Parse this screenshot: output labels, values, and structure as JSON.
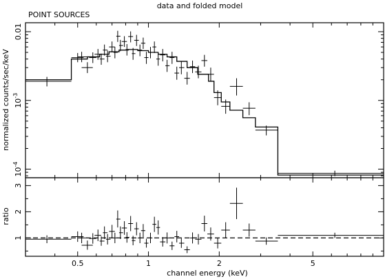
{
  "chart_data": [
    {
      "type": "line",
      "title": "data and folded model",
      "subtitle": "POINT SOURCES",
      "xlabel": "",
      "ylabel": "normalized counts/sec/keV",
      "xscale": "log",
      "yscale": "log",
      "xlim": [
        0.3,
        10
      ],
      "ylim": [
        7.5e-05,
        0.0135
      ],
      "y_tick_labels": [
        {
          "value": 0.01,
          "label": "0.01"
        },
        {
          "value": 0.001,
          "label": "10",
          "exp": "-3"
        },
        {
          "value": 0.0001,
          "label": "10",
          "exp": "-4"
        }
      ],
      "series": [
        {
          "kind": "data",
          "points": [
            {
              "x": 0.37,
              "xlo": 0.3,
              "xhi": 0.47,
              "y": 0.0019,
              "ylo": 0.0016,
              "yhi": 0.0022
            },
            {
              "x": 0.5,
              "xlo": 0.47,
              "xhi": 0.53,
              "y": 0.0042,
              "ylo": 0.0036,
              "yhi": 0.0049
            },
            {
              "x": 0.52,
              "xlo": 0.5,
              "xhi": 0.55,
              "y": 0.0043,
              "ylo": 0.0036,
              "yhi": 0.0051
            },
            {
              "x": 0.55,
              "xlo": 0.52,
              "xhi": 0.58,
              "y": 0.003,
              "ylo": 0.0025,
              "yhi": 0.0036
            },
            {
              "x": 0.58,
              "xlo": 0.56,
              "xhi": 0.6,
              "y": 0.0042,
              "ylo": 0.0035,
              "yhi": 0.005
            },
            {
              "x": 0.61,
              "xlo": 0.59,
              "xhi": 0.63,
              "y": 0.0047,
              "ylo": 0.0039,
              "yhi": 0.0056
            },
            {
              "x": 0.63,
              "xlo": 0.62,
              "xhi": 0.65,
              "y": 0.004,
              "ylo": 0.0033,
              "yhi": 0.0048
            },
            {
              "x": 0.65,
              "xlo": 0.64,
              "xhi": 0.67,
              "y": 0.0054,
              "ylo": 0.0045,
              "yhi": 0.0065
            },
            {
              "x": 0.67,
              "xlo": 0.66,
              "xhi": 0.69,
              "y": 0.0044,
              "ylo": 0.0036,
              "yhi": 0.0053
            },
            {
              "x": 0.7,
              "xlo": 0.68,
              "xhi": 0.72,
              "y": 0.006,
              "ylo": 0.005,
              "yhi": 0.0072
            },
            {
              "x": 0.72,
              "xlo": 0.71,
              "xhi": 0.74,
              "y": 0.005,
              "ylo": 0.0041,
              "yhi": 0.006
            },
            {
              "x": 0.74,
              "xlo": 0.73,
              "xhi": 0.76,
              "y": 0.0086,
              "ylo": 0.0071,
              "yhi": 0.0103
            },
            {
              "x": 0.76,
              "xlo": 0.75,
              "xhi": 0.78,
              "y": 0.0063,
              "ylo": 0.0052,
              "yhi": 0.0076
            },
            {
              "x": 0.79,
              "xlo": 0.77,
              "xhi": 0.81,
              "y": 0.0072,
              "ylo": 0.006,
              "yhi": 0.0086
            },
            {
              "x": 0.81,
              "xlo": 0.8,
              "xhi": 0.83,
              "y": 0.0055,
              "ylo": 0.0045,
              "yhi": 0.0066
            },
            {
              "x": 0.84,
              "xlo": 0.82,
              "xhi": 0.86,
              "y": 0.0085,
              "ylo": 0.007,
              "yhi": 0.0101
            },
            {
              "x": 0.86,
              "xlo": 0.85,
              "xhi": 0.88,
              "y": 0.0048,
              "ylo": 0.0039,
              "yhi": 0.0058
            },
            {
              "x": 0.89,
              "xlo": 0.87,
              "xhi": 0.91,
              "y": 0.0075,
              "ylo": 0.0062,
              "yhi": 0.009
            },
            {
              "x": 0.92,
              "xlo": 0.9,
              "xhi": 0.94,
              "y": 0.0054,
              "ylo": 0.0044,
              "yhi": 0.0065
            },
            {
              "x": 0.95,
              "xlo": 0.93,
              "xhi": 0.97,
              "y": 0.0068,
              "ylo": 0.0056,
              "yhi": 0.0082
            },
            {
              "x": 0.98,
              "xlo": 0.96,
              "xhi": 1.0,
              "y": 0.0042,
              "ylo": 0.0034,
              "yhi": 0.0051
            },
            {
              "x": 1.02,
              "xlo": 1.0,
              "xhi": 1.04,
              "y": 0.005,
              "ylo": 0.0041,
              "yhi": 0.006
            },
            {
              "x": 1.06,
              "xlo": 1.04,
              "xhi": 1.08,
              "y": 0.006,
              "ylo": 0.0049,
              "yhi": 0.0072
            },
            {
              "x": 1.1,
              "xlo": 1.08,
              "xhi": 1.12,
              "y": 0.004,
              "ylo": 0.0032,
              "yhi": 0.0049
            },
            {
              "x": 1.15,
              "xlo": 1.12,
              "xhi": 1.18,
              "y": 0.0046,
              "ylo": 0.0037,
              "yhi": 0.0056
            },
            {
              "x": 1.2,
              "xlo": 1.18,
              "xhi": 1.23,
              "y": 0.0032,
              "ylo": 0.0026,
              "yhi": 0.0039
            },
            {
              "x": 1.26,
              "xlo": 1.23,
              "xhi": 1.29,
              "y": 0.0042,
              "ylo": 0.0034,
              "yhi": 0.0051
            },
            {
              "x": 1.32,
              "xlo": 1.29,
              "xhi": 1.35,
              "y": 0.0025,
              "ylo": 0.002,
              "yhi": 0.0031
            },
            {
              "x": 1.38,
              "xlo": 1.35,
              "xhi": 1.42,
              "y": 0.003,
              "ylo": 0.0024,
              "yhi": 0.0037
            },
            {
              "x": 1.46,
              "xlo": 1.42,
              "xhi": 1.5,
              "y": 0.0021,
              "ylo": 0.0017,
              "yhi": 0.0026
            },
            {
              "x": 1.54,
              "xlo": 1.5,
              "xhi": 1.58,
              "y": 0.0031,
              "ylo": 0.0025,
              "yhi": 0.0038
            },
            {
              "x": 1.63,
              "xlo": 1.58,
              "xhi": 1.68,
              "y": 0.0026,
              "ylo": 0.0021,
              "yhi": 0.0032
            },
            {
              "x": 1.73,
              "xlo": 1.68,
              "xhi": 1.78,
              "y": 0.0038,
              "ylo": 0.0031,
              "yhi": 0.0046
            },
            {
              "x": 1.84,
              "xlo": 1.78,
              "xhi": 1.9,
              "y": 0.0024,
              "ylo": 0.0019,
              "yhi": 0.003
            },
            {
              "x": 1.97,
              "xlo": 1.9,
              "xhi": 2.04,
              "y": 0.0011,
              "ylo": 0.00085,
              "yhi": 0.0014
            },
            {
              "x": 2.13,
              "xlo": 2.04,
              "xhi": 2.22,
              "y": 0.00082,
              "ylo": 0.00064,
              "yhi": 0.00103
            },
            {
              "x": 2.37,
              "xlo": 2.22,
              "xhi": 2.52,
              "y": 0.0016,
              "ylo": 0.00118,
              "yhi": 0.0021
            },
            {
              "x": 2.68,
              "xlo": 2.52,
              "xhi": 2.85,
              "y": 0.00077,
              "ylo": 0.00061,
              "yhi": 0.00094
            },
            {
              "x": 3.17,
              "xlo": 2.85,
              "xhi": 3.55,
              "y": 0.00037,
              "ylo": 0.00031,
              "yhi": 0.00043
            },
            {
              "x": 6.2,
              "xlo": 3.55,
              "xhi": 10.0,
              "y": 8.7e-05,
              "ylo": 7.9e-05,
              "yhi": 9.5e-05
            }
          ]
        },
        {
          "kind": "model",
          "steps": [
            {
              "x0": 0.3,
              "x1": 0.47,
              "y": 0.002
            },
            {
              "x0": 0.47,
              "x1": 0.55,
              "y": 0.004
            },
            {
              "x0": 0.55,
              "x1": 0.62,
              "y": 0.0043
            },
            {
              "x0": 0.62,
              "x1": 0.68,
              "y": 0.0047
            },
            {
              "x0": 0.68,
              "x1": 0.75,
              "y": 0.0051
            },
            {
              "x0": 0.75,
              "x1": 0.82,
              "y": 0.0054
            },
            {
              "x0": 0.82,
              "x1": 0.9,
              "y": 0.0055
            },
            {
              "x0": 0.9,
              "x1": 1.0,
              "y": 0.0053
            },
            {
              "x0": 1.0,
              "x1": 1.1,
              "y": 0.005
            },
            {
              "x0": 1.1,
              "x1": 1.2,
              "y": 0.0047
            },
            {
              "x0": 1.2,
              "x1": 1.32,
              "y": 0.0043
            },
            {
              "x0": 1.32,
              "x1": 1.46,
              "y": 0.0037
            },
            {
              "x0": 1.46,
              "x1": 1.62,
              "y": 0.003
            },
            {
              "x0": 1.62,
              "x1": 1.8,
              "y": 0.0024
            },
            {
              "x0": 1.8,
              "x1": 1.9,
              "y": 0.0019
            },
            {
              "x0": 1.9,
              "x1": 2.04,
              "y": 0.0013
            },
            {
              "x0": 2.04,
              "x1": 2.22,
              "y": 0.00095
            },
            {
              "x0": 2.22,
              "x1": 2.52,
              "y": 0.00072
            },
            {
              "x0": 2.52,
              "x1": 2.85,
              "y": 0.00056
            },
            {
              "x0": 2.85,
              "x1": 3.55,
              "y": 0.00041
            },
            {
              "x0": 3.55,
              "x1": 10.0,
              "y": 8.2e-05
            }
          ]
        }
      ]
    },
    {
      "type": "line",
      "xlabel": "channel energy (keV)",
      "ylabel": "ratio",
      "xscale": "log",
      "xlim": [
        0.3,
        10
      ],
      "ylim": [
        0.3,
        3.3
      ],
      "x_tick_labels": [
        {
          "value": 0.5,
          "label": "0.5"
        },
        {
          "value": 1,
          "label": "1"
        },
        {
          "value": 2,
          "label": "2"
        },
        {
          "value": 5,
          "label": "5"
        }
      ],
      "y_tick_labels": [
        {
          "value": 1,
          "label": "1"
        },
        {
          "value": 2,
          "label": "2"
        },
        {
          "value": 3,
          "label": "3"
        }
      ],
      "reference_line": 1,
      "series": [
        {
          "kind": "ratio",
          "points": [
            {
              "x": 0.37,
              "xlo": 0.3,
              "xhi": 0.47,
              "y": 0.95,
              "ylo": 0.8,
              "yhi": 1.1
            },
            {
              "x": 0.5,
              "xlo": 0.47,
              "xhi": 0.53,
              "y": 1.05,
              "ylo": 0.85,
              "yhi": 1.25
            },
            {
              "x": 0.52,
              "xlo": 0.5,
              "xhi": 0.55,
              "y": 1.0,
              "ylo": 0.8,
              "yhi": 1.2
            },
            {
              "x": 0.55,
              "xlo": 0.52,
              "xhi": 0.58,
              "y": 0.72,
              "ylo": 0.55,
              "yhi": 0.9
            },
            {
              "x": 0.58,
              "xlo": 0.56,
              "xhi": 0.6,
              "y": 0.98,
              "ylo": 0.78,
              "yhi": 1.18
            },
            {
              "x": 0.61,
              "xlo": 0.59,
              "xhi": 0.63,
              "y": 1.1,
              "ylo": 0.88,
              "yhi": 1.32
            },
            {
              "x": 0.63,
              "xlo": 0.62,
              "xhi": 0.65,
              "y": 0.88,
              "ylo": 0.7,
              "yhi": 1.06
            },
            {
              "x": 0.65,
              "xlo": 0.64,
              "xhi": 0.67,
              "y": 1.2,
              "ylo": 0.96,
              "yhi": 1.44
            },
            {
              "x": 0.67,
              "xlo": 0.66,
              "xhi": 0.69,
              "y": 0.95,
              "ylo": 0.75,
              "yhi": 1.15
            },
            {
              "x": 0.7,
              "xlo": 0.68,
              "xhi": 0.72,
              "y": 1.25,
              "ylo": 1.0,
              "yhi": 1.5
            },
            {
              "x": 0.72,
              "xlo": 0.71,
              "xhi": 0.74,
              "y": 1.0,
              "ylo": 0.8,
              "yhi": 1.2
            },
            {
              "x": 0.74,
              "xlo": 0.73,
              "xhi": 0.76,
              "y": 1.72,
              "ylo": 1.4,
              "yhi": 2.05
            },
            {
              "x": 0.76,
              "xlo": 0.75,
              "xhi": 0.78,
              "y": 1.2,
              "ylo": 0.96,
              "yhi": 1.44
            },
            {
              "x": 0.79,
              "xlo": 0.77,
              "xhi": 0.81,
              "y": 1.38,
              "ylo": 1.12,
              "yhi": 1.64
            },
            {
              "x": 0.81,
              "xlo": 0.8,
              "xhi": 0.83,
              "y": 1.02,
              "ylo": 0.82,
              "yhi": 1.22
            },
            {
              "x": 0.84,
              "xlo": 0.82,
              "xhi": 0.86,
              "y": 1.55,
              "ylo": 1.26,
              "yhi": 1.84
            },
            {
              "x": 0.86,
              "xlo": 0.85,
              "xhi": 0.88,
              "y": 0.9,
              "ylo": 0.72,
              "yhi": 1.08
            },
            {
              "x": 0.89,
              "xlo": 0.87,
              "xhi": 0.91,
              "y": 1.35,
              "ylo": 1.1,
              "yhi": 1.6
            },
            {
              "x": 0.92,
              "xlo": 0.9,
              "xhi": 0.94,
              "y": 1.0,
              "ylo": 0.8,
              "yhi": 1.2
            },
            {
              "x": 0.95,
              "xlo": 0.93,
              "xhi": 0.97,
              "y": 1.28,
              "ylo": 1.03,
              "yhi": 1.53
            },
            {
              "x": 0.98,
              "xlo": 0.96,
              "xhi": 1.0,
              "y": 0.8,
              "ylo": 0.63,
              "yhi": 0.97
            },
            {
              "x": 1.02,
              "xlo": 1.0,
              "xhi": 1.04,
              "y": 1.0,
              "ylo": 0.8,
              "yhi": 1.2
            },
            {
              "x": 1.06,
              "xlo": 1.04,
              "xhi": 1.08,
              "y": 1.52,
              "ylo": 1.23,
              "yhi": 1.81
            },
            {
              "x": 1.1,
              "xlo": 1.08,
              "xhi": 1.12,
              "y": 1.4,
              "ylo": 1.13,
              "yhi": 1.67
            },
            {
              "x": 1.15,
              "xlo": 1.12,
              "xhi": 1.18,
              "y": 0.85,
              "ylo": 0.67,
              "yhi": 1.03
            },
            {
              "x": 1.2,
              "xlo": 1.18,
              "xhi": 1.23,
              "y": 1.0,
              "ylo": 0.79,
              "yhi": 1.21
            },
            {
              "x": 1.26,
              "xlo": 1.23,
              "xhi": 1.29,
              "y": 0.7,
              "ylo": 0.54,
              "yhi": 0.86
            },
            {
              "x": 1.32,
              "xlo": 1.29,
              "xhi": 1.35,
              "y": 1.05,
              "ylo": 0.83,
              "yhi": 1.27
            },
            {
              "x": 1.38,
              "xlo": 1.35,
              "xhi": 1.42,
              "y": 0.8,
              "ylo": 0.62,
              "yhi": 0.98
            },
            {
              "x": 1.46,
              "xlo": 1.42,
              "xhi": 1.5,
              "y": 0.55,
              "ylo": 0.42,
              "yhi": 0.68
            },
            {
              "x": 1.54,
              "xlo": 1.5,
              "xhi": 1.58,
              "y": 1.0,
              "ylo": 0.79,
              "yhi": 1.21
            },
            {
              "x": 1.63,
              "xlo": 1.58,
              "xhi": 1.68,
              "y": 0.95,
              "ylo": 0.75,
              "yhi": 1.15
            },
            {
              "x": 1.73,
              "xlo": 1.68,
              "xhi": 1.78,
              "y": 1.55,
              "ylo": 1.25,
              "yhi": 1.85
            },
            {
              "x": 1.84,
              "xlo": 1.78,
              "xhi": 1.9,
              "y": 1.15,
              "ylo": 0.9,
              "yhi": 1.4
            },
            {
              "x": 1.97,
              "xlo": 1.9,
              "xhi": 2.04,
              "y": 0.8,
              "ylo": 0.6,
              "yhi": 1.0
            },
            {
              "x": 2.13,
              "xlo": 2.04,
              "xhi": 2.22,
              "y": 1.3,
              "ylo": 1.0,
              "yhi": 1.6
            },
            {
              "x": 2.37,
              "xlo": 2.22,
              "xhi": 2.52,
              "y": 2.32,
              "ylo": 1.72,
              "yhi": 2.92
            },
            {
              "x": 2.68,
              "xlo": 2.52,
              "xhi": 2.85,
              "y": 1.3,
              "ylo": 1.05,
              "yhi": 1.55
            },
            {
              "x": 3.17,
              "xlo": 2.85,
              "xhi": 3.55,
              "y": 0.88,
              "ylo": 0.74,
              "yhi": 1.02
            },
            {
              "x": 6.2,
              "xlo": 3.55,
              "xhi": 10.0,
              "y": 1.1,
              "ylo": 1.0,
              "yhi": 1.2
            }
          ]
        }
      ]
    }
  ]
}
